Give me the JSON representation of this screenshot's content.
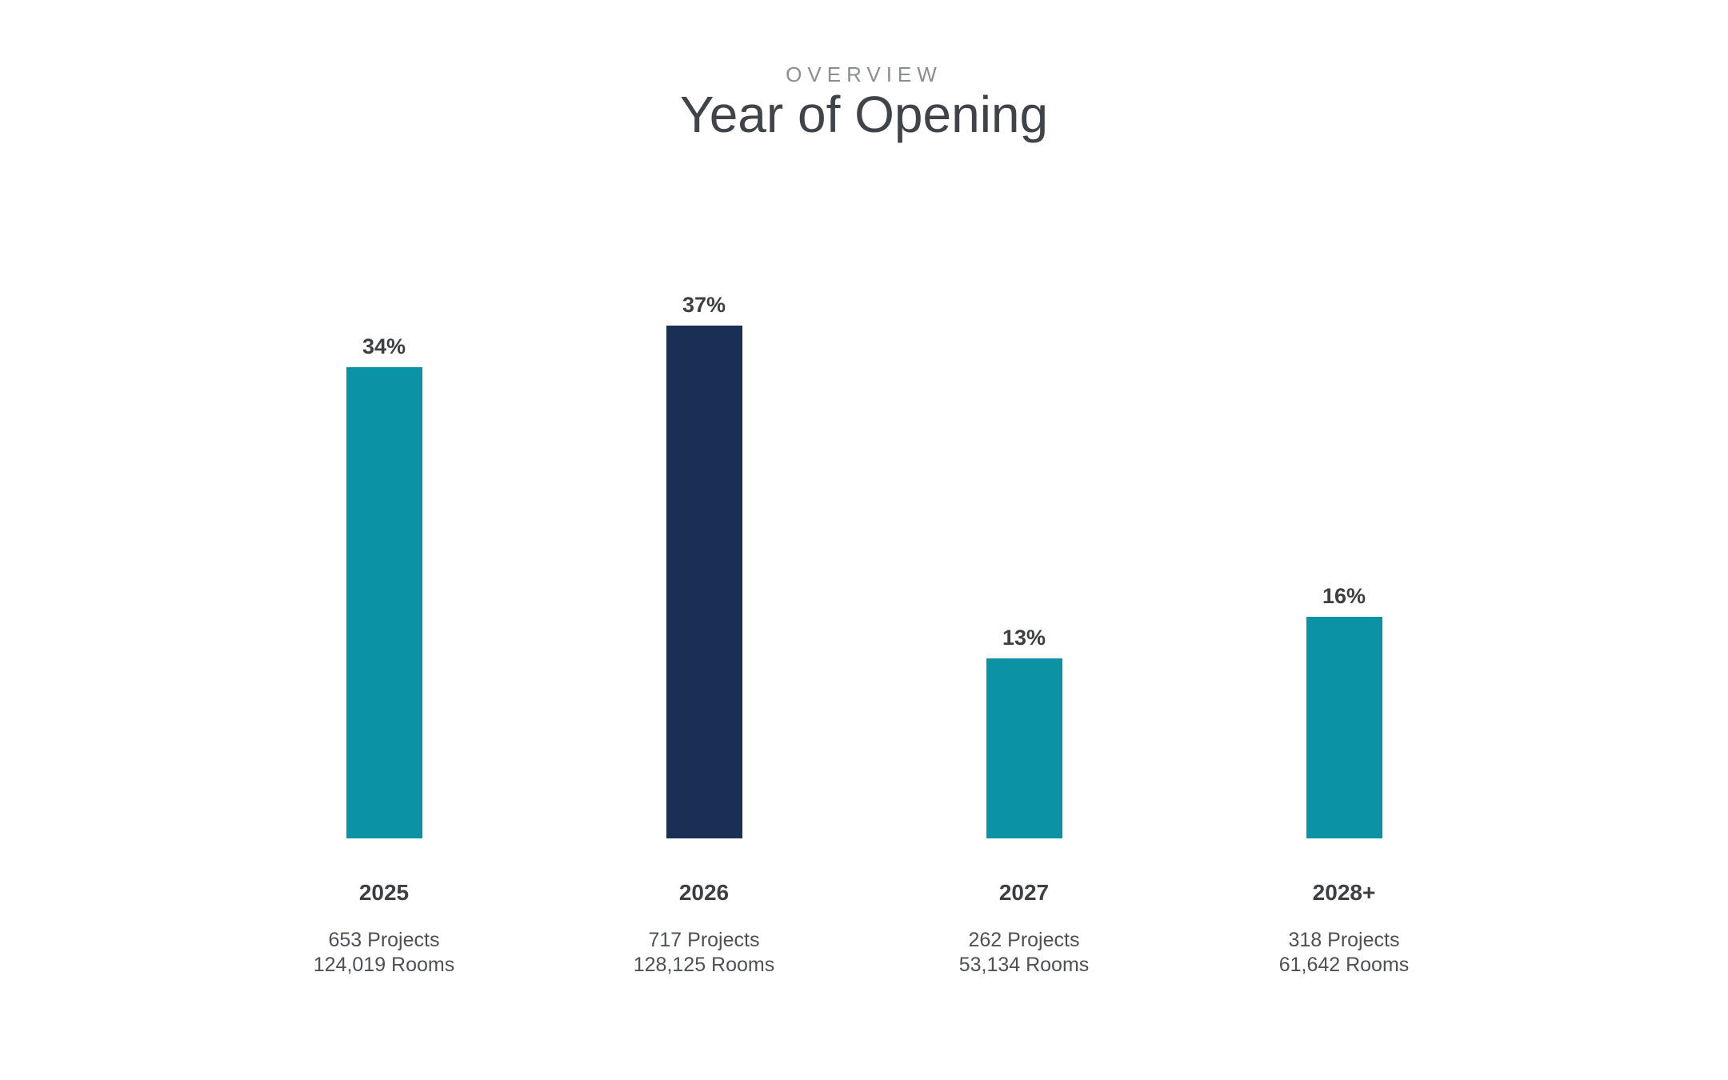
{
  "page": {
    "background": "#ffffff"
  },
  "header": {
    "eyebrow": "OVERVIEW",
    "title": "Year of Opening"
  },
  "colors": {
    "teal": "#0b93a5",
    "navy": "#1a2f54",
    "title_text": "#404449",
    "eyebrow_text": "#8a8e92",
    "label_text": "#3c4043",
    "stats_text": "#4d5156"
  },
  "chart_data": {
    "type": "bar",
    "title": "Year of Opening",
    "subtitle": "OVERVIEW",
    "categories": [
      "2025",
      "2026",
      "2027",
      "2028+"
    ],
    "values": [
      34,
      37,
      13,
      16
    ],
    "unit": "%",
    "ylim": [
      0,
      40
    ],
    "grid": false,
    "legend": false,
    "axis_lines": false,
    "bar_colors": [
      "#0b93a5",
      "#1a2f54",
      "#0b93a5",
      "#0b93a5"
    ],
    "columns": [
      {
        "value": 34,
        "pct_label": "34%",
        "year": "2025",
        "projects": 653,
        "rooms": 124019,
        "projects_label": "653 Projects",
        "rooms_label": "124,019 Rooms",
        "color": "#0b93a5"
      },
      {
        "value": 37,
        "pct_label": "37%",
        "year": "2026",
        "projects": 717,
        "rooms": 128125,
        "projects_label": "717 Projects",
        "rooms_label": "128,125 Rooms",
        "color": "#1a2f54"
      },
      {
        "value": 13,
        "pct_label": "13%",
        "year": "2027",
        "projects": 262,
        "rooms": 53134,
        "projects_label": "262 Projects",
        "rooms_label": "53,134 Rooms",
        "color": "#0b93a5"
      },
      {
        "value": 16,
        "pct_label": "16%",
        "year": "2028+",
        "projects": 318,
        "rooms": 61642,
        "projects_label": "318 Projects",
        "rooms_label": "61,642 Rooms",
        "color": "#0b93a5"
      }
    ]
  }
}
